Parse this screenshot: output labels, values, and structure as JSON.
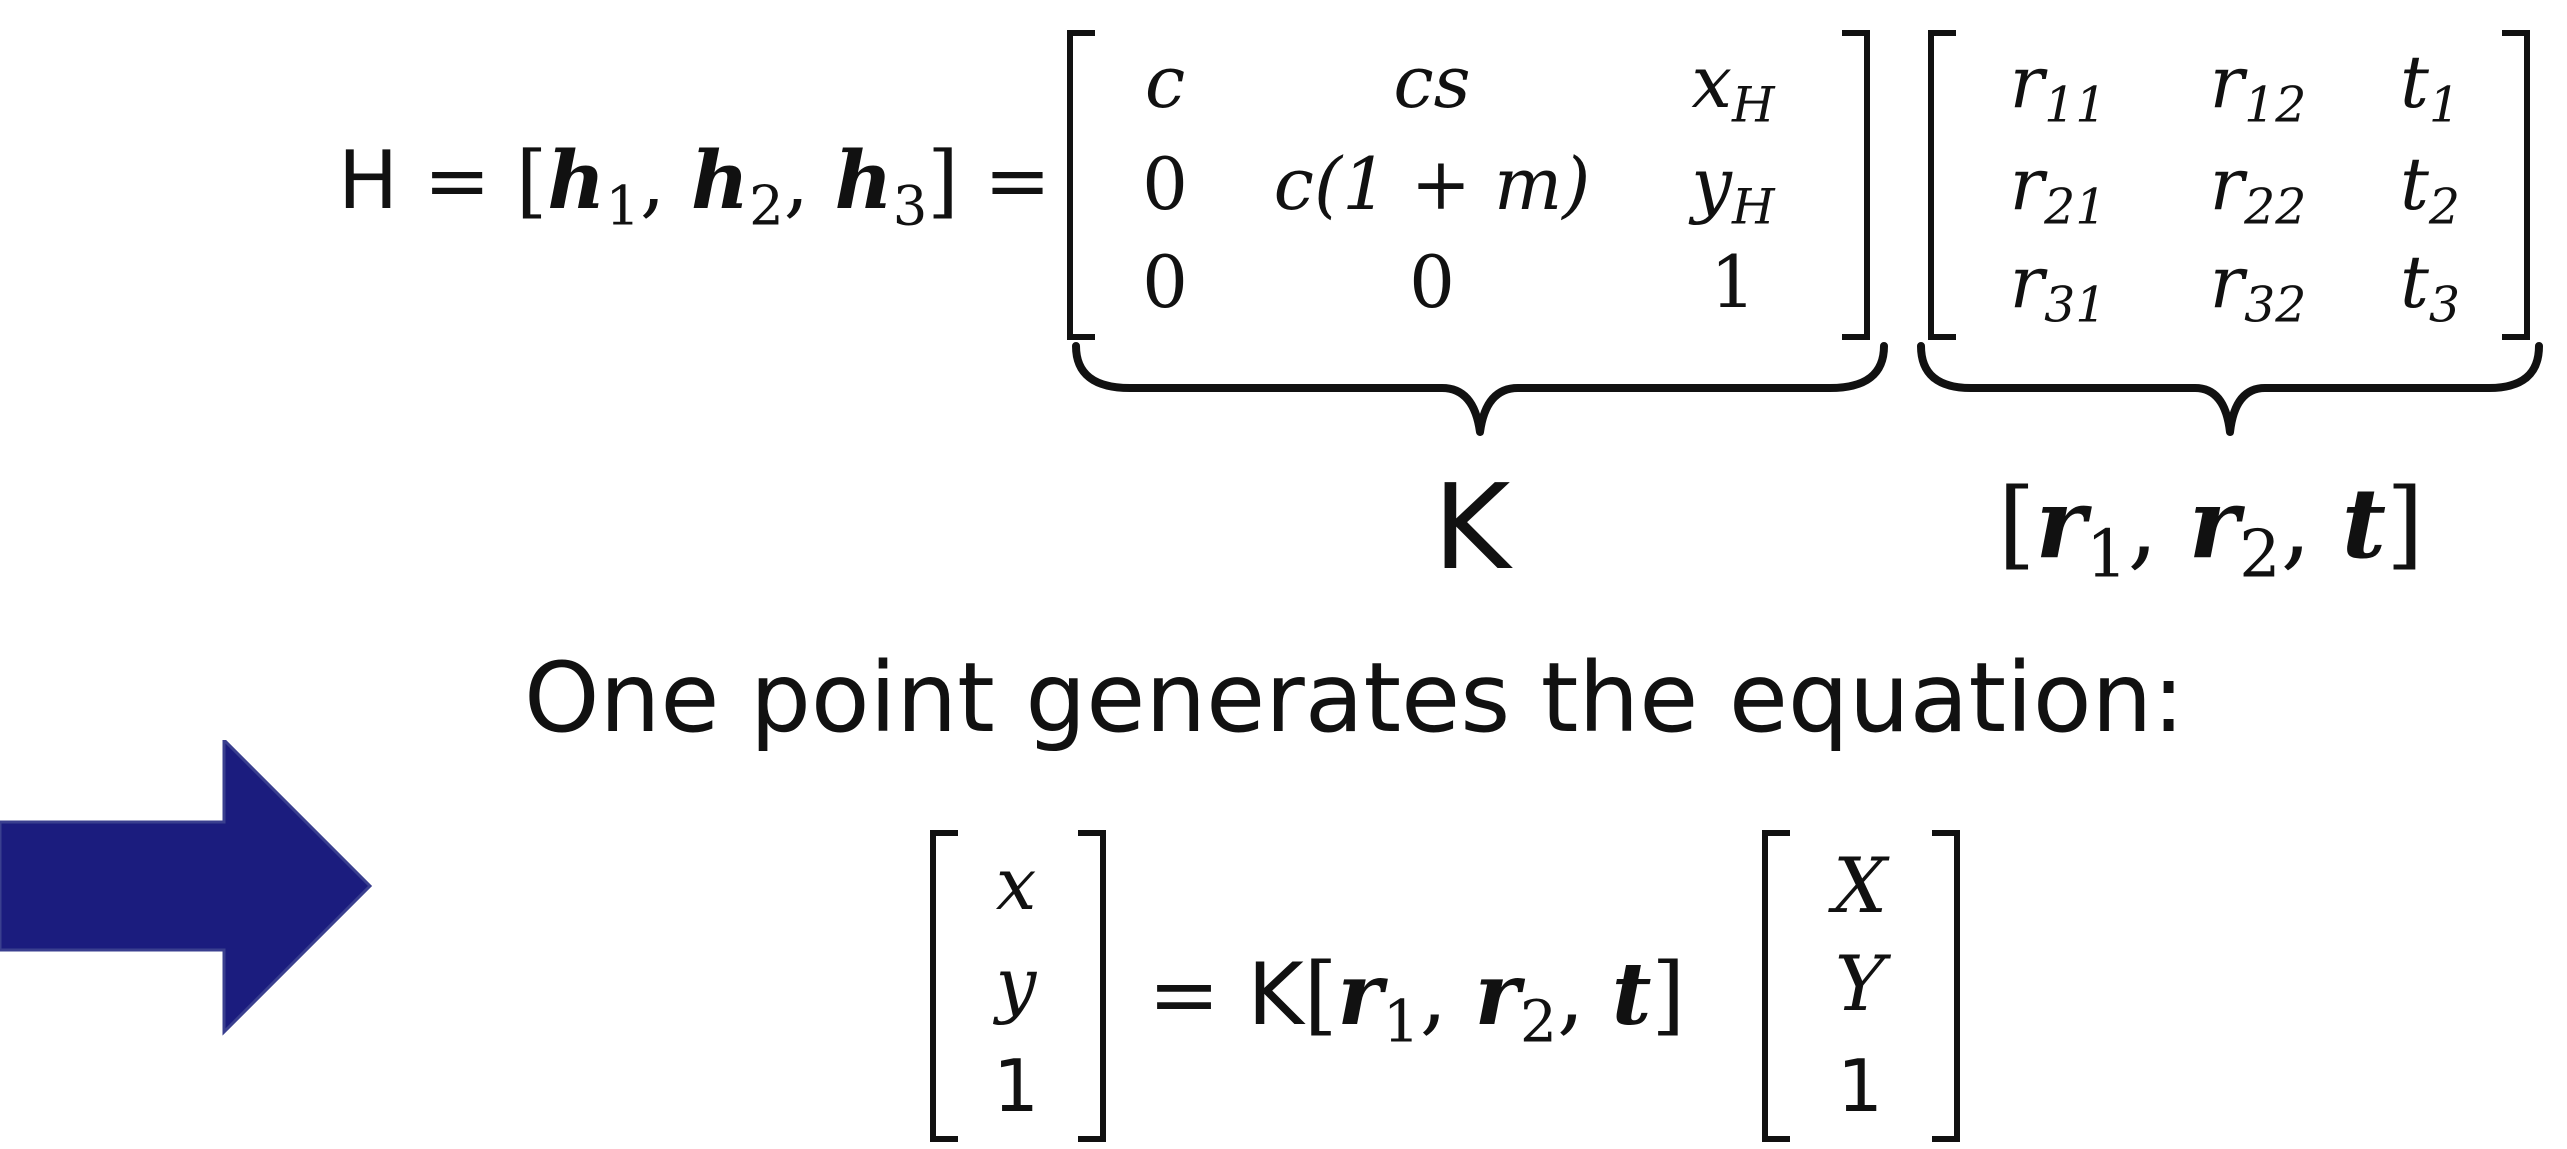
{
  "homography": {
    "lhs_symbol": "H",
    "lhs_cols": [
      "h",
      "1",
      "h",
      "2",
      "h",
      "3"
    ],
    "K_matrix": {
      "rows": [
        [
          "c",
          "cs",
          "x",
          "H"
        ],
        [
          "0",
          "c(1 + m)",
          "y",
          "H"
        ],
        [
          "0",
          "0",
          "1",
          ""
        ]
      ]
    },
    "R_matrix": {
      "rows": [
        [
          "r",
          "11",
          "r",
          "12",
          "t",
          "1"
        ],
        [
          "r",
          "21",
          "r",
          "22",
          "t",
          "2"
        ],
        [
          "r",
          "31",
          "r",
          "32",
          "t",
          "3"
        ]
      ]
    },
    "brace_label_K": "K",
    "brace_label_R": "[r1, r2, t]"
  },
  "caption": "One point generates the equation:",
  "equation": {
    "image_vector": [
      "x",
      "y",
      "1"
    ],
    "world_vector": [
      "X",
      "Y",
      "1"
    ],
    "K_symbol": "K"
  },
  "arrow": {
    "color": "#1B1C7E",
    "border_color": "#3A3F8F"
  }
}
